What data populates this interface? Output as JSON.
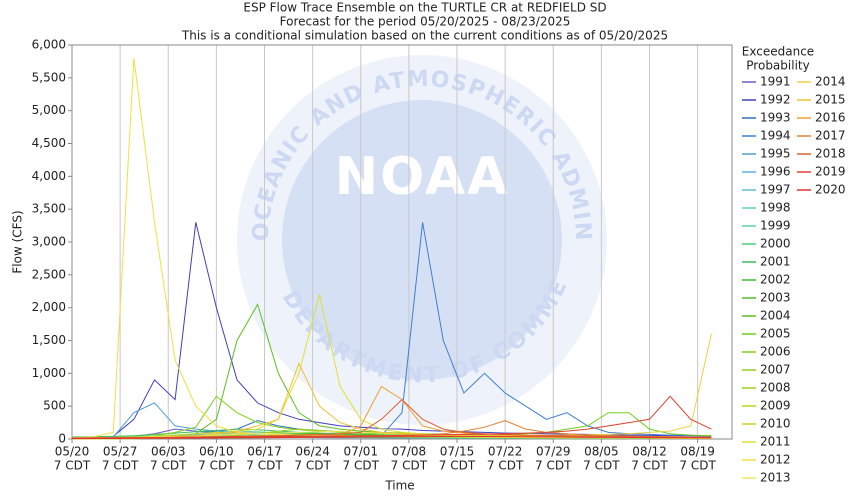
{
  "chart_data": {
    "type": "line",
    "title": [
      "ESP Flow Trace Ensemble on the TURTLE CR at REDFIELD SD",
      "Forecast for the period 05/20/2025 - 08/23/2025",
      "This is a conditional simulation based on the current conditions as of 05/20/2025"
    ],
    "xlabel": "Time",
    "ylabel": "Flow (CFS)",
    "legend_title": [
      "Exceedance",
      "Probability"
    ],
    "legend": "right",
    "watermark": {
      "logo": "NOAA",
      "ring_top": "NATIONAL OCEANIC AND ATMOSPHERIC ADMINISTRATION",
      "ring_bottom": "U.S. DEPARTMENT OF COMMERCE"
    },
    "grid": true,
    "x": [
      "05/20",
      "05/23",
      "05/26",
      "05/29",
      "06/01",
      "06/04",
      "06/07",
      "06/10",
      "06/13",
      "06/16",
      "06/19",
      "06/22",
      "06/25",
      "06/28",
      "07/01",
      "07/04",
      "07/07",
      "07/10",
      "07/13",
      "07/16",
      "07/19",
      "07/22",
      "07/25",
      "07/28",
      "07/31",
      "08/03",
      "08/06",
      "08/09",
      "08/12",
      "08/15",
      "08/18",
      "08/21"
    ],
    "xlim": [
      "05/20",
      "08/24"
    ],
    "xticks": [
      "05/20",
      "05/27",
      "06/03",
      "06/10",
      "06/17",
      "06/24",
      "07/01",
      "07/08",
      "07/15",
      "07/22",
      "07/29",
      "08/05",
      "08/12",
      "08/19"
    ],
    "xtick_sublabel": "7 CDT",
    "ylim": [
      0,
      6000
    ],
    "yticks": [
      0,
      500,
      {
        "value": 1000,
        "label": "1,000"
      },
      {
        "value": 1500,
        "label": "1,500"
      },
      {
        "value": 2000,
        "label": "2,000"
      },
      {
        "value": 2500,
        "label": "2,500"
      },
      {
        "value": 3000,
        "label": "3,000"
      },
      {
        "value": 3500,
        "label": "3,500"
      },
      {
        "value": 4000,
        "label": "4,000"
      },
      {
        "value": 4500,
        "label": "4,500"
      },
      {
        "value": 5000,
        "label": "5,000"
      },
      {
        "value": 5500,
        "label": "5,500"
      },
      {
        "value": 6000,
        "label": "6,000"
      }
    ],
    "series": [
      {
        "name": "1991",
        "color": "#6a5acd",
        "values": [
          10,
          15,
          20,
          40,
          80,
          150,
          120,
          100,
          90,
          80,
          70,
          60,
          55,
          50,
          45,
          40,
          40,
          35,
          35,
          30,
          30,
          28,
          25,
          25,
          22,
          20,
          20,
          18,
          18,
          15,
          15,
          15
        ]
      },
      {
        "name": "1992",
        "color": "#3f3fbf",
        "values": [
          20,
          25,
          40,
          300,
          900,
          600,
          3300,
          2000,
          900,
          550,
          400,
          300,
          250,
          200,
          180,
          160,
          150,
          130,
          120,
          110,
          100,
          90,
          85,
          80,
          75,
          70,
          65,
          60,
          55,
          50,
          50,
          45
        ]
      },
      {
        "name": "1993",
        "color": "#2f6fbf",
        "values": [
          10,
          10,
          15,
          20,
          30,
          50,
          80,
          120,
          150,
          280,
          200,
          150,
          130,
          110,
          100,
          90,
          80,
          70,
          60,
          55,
          50,
          45,
          40,
          35,
          30,
          30,
          28,
          25,
          25,
          22,
          20,
          20
        ]
      },
      {
        "name": "1994",
        "color": "#3f7fcf",
        "values": [
          10,
          10,
          10,
          12,
          15,
          20,
          20,
          25,
          25,
          30,
          30,
          35,
          40,
          45,
          45,
          50,
          400,
          3300,
          1500,
          700,
          1000,
          700,
          500,
          300,
          400,
          200,
          100,
          80,
          70,
          60,
          55,
          50
        ]
      },
      {
        "name": "1995",
        "color": "#4f9fcf",
        "values": [
          10,
          15,
          30,
          400,
          550,
          200,
          150,
          120,
          100,
          90,
          80,
          70,
          60,
          55,
          50,
          45,
          40,
          35,
          30,
          30,
          28,
          25,
          25,
          22,
          20,
          20,
          18,
          18,
          15,
          15,
          15,
          15
        ]
      },
      {
        "name": "1996",
        "color": "#5fb0df",
        "values": [
          5,
          5,
          8,
          10,
          15,
          20,
          25,
          30,
          35,
          30,
          28,
          25,
          22,
          20,
          18,
          16,
          15,
          14,
          13,
          12,
          11,
          10,
          10,
          10,
          9,
          9,
          8,
          8,
          8,
          7,
          7,
          7
        ]
      },
      {
        "name": "1997",
        "color": "#5fbfcf",
        "values": [
          15,
          18,
          20,
          25,
          40,
          60,
          70,
          60,
          50,
          45,
          40,
          38,
          35,
          32,
          30,
          28,
          26,
          25,
          24,
          22,
          20,
          20,
          18,
          18,
          16,
          15,
          15,
          14,
          14,
          13,
          12,
          12
        ]
      },
      {
        "name": "1998",
        "color": "#5fcfbf",
        "values": [
          8,
          10,
          12,
          20,
          30,
          45,
          60,
          80,
          70,
          60,
          50,
          45,
          40,
          35,
          30,
          28,
          25,
          22,
          20,
          18,
          16,
          15,
          14,
          13,
          12,
          11,
          10,
          10,
          9,
          9,
          8,
          8
        ]
      },
      {
        "name": "1999",
        "color": "#5fcf9f",
        "values": [
          20,
          25,
          30,
          40,
          50,
          60,
          80,
          100,
          120,
          110,
          90,
          80,
          70,
          60,
          55,
          50,
          45,
          40,
          38,
          35,
          32,
          30,
          28,
          26,
          25,
          24,
          22,
          20,
          20,
          18,
          18,
          16
        ]
      },
      {
        "name": "2000",
        "color": "#4fcf7f",
        "values": [
          5,
          5,
          6,
          8,
          10,
          12,
          15,
          18,
          20,
          22,
          25,
          28,
          30,
          28,
          25,
          22,
          20,
          18,
          16,
          15,
          14,
          13,
          12,
          11,
          10,
          10,
          9,
          9,
          8,
          8,
          7,
          7
        ]
      },
      {
        "name": "2001",
        "color": "#3fbf5f",
        "values": [
          30,
          35,
          40,
          50,
          70,
          90,
          110,
          130,
          150,
          140,
          120,
          100,
          90,
          80,
          70,
          60,
          55,
          50,
          45,
          40,
          38,
          35,
          32,
          30,
          28,
          26,
          25,
          24,
          22,
          20,
          20,
          18
        ]
      },
      {
        "name": "2002",
        "color": "#3fbf3f",
        "values": [
          10,
          10,
          12,
          15,
          18,
          20,
          25,
          30,
          35,
          40,
          45,
          50,
          55,
          60,
          70,
          80,
          90,
          80,
          70,
          60,
          55,
          50,
          45,
          40,
          38,
          35,
          32,
          30,
          28,
          26,
          25,
          24
        ]
      },
      {
        "name": "2003",
        "color": "#4fbf2f",
        "values": [
          12,
          14,
          16,
          20,
          25,
          30,
          35,
          40,
          60,
          80,
          100,
          90,
          80,
          70,
          60,
          55,
          50,
          45,
          40,
          38,
          35,
          32,
          30,
          28,
          26,
          24,
          22,
          20,
          20,
          18,
          18,
          16
        ]
      },
      {
        "name": "2004",
        "color": "#5fbf1f",
        "values": [
          5,
          5,
          10,
          20,
          30,
          50,
          80,
          300,
          1500,
          2050,
          1000,
          400,
          200,
          150,
          120,
          100,
          90,
          80,
          70,
          60,
          55,
          50,
          45,
          40,
          35,
          30,
          30,
          28,
          25,
          22,
          20,
          20
        ]
      },
      {
        "name": "2005",
        "color": "#6fcf1f",
        "values": [
          10,
          12,
          14,
          16,
          18,
          20,
          22,
          25,
          28,
          30,
          32,
          35,
          38,
          40,
          42,
          45,
          48,
          50,
          55,
          60,
          65,
          70,
          80,
          100,
          150,
          200,
          400,
          400,
          150,
          80,
          60,
          50
        ]
      },
      {
        "name": "2006",
        "color": "#7fcf1f",
        "values": [
          10,
          12,
          15,
          25,
          50,
          100,
          180,
          650,
          400,
          250,
          180,
          140,
          120,
          100,
          90,
          80,
          70,
          60,
          55,
          50,
          45,
          40,
          38,
          35,
          32,
          30,
          28,
          26,
          24,
          22,
          20,
          20
        ]
      },
      {
        "name": "2007",
        "color": "#8fcf1f",
        "values": [
          6,
          8,
          10,
          12,
          15,
          20,
          25,
          30,
          40,
          50,
          60,
          70,
          60,
          50,
          45,
          40,
          36,
          32,
          30,
          28,
          25,
          22,
          20,
          18,
          16,
          15,
          14,
          13,
          12,
          11,
          10,
          10
        ]
      },
      {
        "name": "2008",
        "color": "#a0d020",
        "values": [
          20,
          22,
          25,
          28,
          30,
          35,
          40,
          50,
          60,
          80,
          120,
          150,
          130,
          110,
          100,
          90,
          80,
          70,
          65,
          60,
          55,
          50,
          45,
          42,
          40,
          38,
          35,
          32,
          30,
          28,
          26,
          25
        ]
      },
      {
        "name": "2009",
        "color": "#c0d020",
        "values": [
          8,
          8,
          9,
          10,
          12,
          14,
          16,
          18,
          20,
          22,
          25,
          30,
          35,
          40,
          45,
          50,
          55,
          60,
          55,
          50,
          45,
          40,
          35,
          30,
          28,
          25,
          22,
          20,
          18,
          16,
          15,
          14
        ]
      },
      {
        "name": "2010",
        "color": "#d0d020",
        "values": [
          15,
          18,
          22,
          30,
          45,
          60,
          80,
          100,
          90,
          80,
          70,
          60,
          55,
          50,
          48,
          45,
          42,
          40,
          38,
          36,
          34,
          32,
          30,
          28,
          26,
          25,
          24,
          22,
          21,
          20,
          19,
          18
        ]
      },
      {
        "name": "2011",
        "color": "#e0e030",
        "values": [
          5,
          5,
          5,
          5,
          10,
          20,
          40,
          80,
          120,
          150,
          300,
          1000,
          2200,
          800,
          300,
          150,
          100,
          80,
          60,
          50,
          40,
          35,
          30,
          25,
          20,
          20,
          18,
          15,
          15,
          12,
          10,
          10
        ]
      },
      {
        "name": "2012",
        "color": "#f0e040",
        "values": [
          20,
          30,
          100,
          5800,
          3300,
          1200,
          500,
          200,
          100,
          80,
          70,
          60,
          55,
          50,
          45,
          40,
          38,
          35,
          32,
          30,
          28,
          25,
          22,
          20,
          20,
          18,
          18,
          15,
          15,
          12,
          12,
          10
        ]
      },
      {
        "name": "2013",
        "color": "#f0e860",
        "values": [
          10,
          12,
          15,
          20,
          30,
          40,
          50,
          60,
          70,
          80,
          90,
          100,
          110,
          120,
          100,
          90,
          80,
          70,
          60,
          55,
          50,
          45,
          40,
          36,
          32,
          30,
          28,
          26,
          24,
          22,
          20,
          20
        ]
      },
      {
        "name": "2014",
        "color": "#f0d040",
        "values": [
          5,
          5,
          6,
          8,
          10,
          12,
          15,
          18,
          20,
          22,
          25,
          28,
          30,
          32,
          35,
          38,
          40,
          42,
          45,
          48,
          50,
          52,
          55,
          58,
          60,
          65,
          70,
          80,
          100,
          120,
          200,
          1600
        ]
      },
      {
        "name": "2015",
        "color": "#f0c030",
        "values": [
          8,
          10,
          12,
          15,
          20,
          30,
          50,
          80,
          120,
          200,
          300,
          1150,
          500,
          250,
          150,
          100,
          80,
          70,
          60,
          50,
          45,
          40,
          35,
          30,
          28,
          25,
          22,
          20,
          18,
          16,
          15,
          14
        ]
      },
      {
        "name": "2016",
        "color": "#f0a030",
        "values": [
          6,
          8,
          10,
          12,
          14,
          16,
          18,
          20,
          25,
          30,
          35,
          40,
          50,
          60,
          200,
          800,
          600,
          200,
          120,
          90,
          70,
          60,
          50,
          45,
          40,
          35,
          30,
          28,
          25,
          22,
          20,
          18
        ]
      },
      {
        "name": "2017",
        "color": "#e08030",
        "values": [
          10,
          10,
          12,
          14,
          16,
          18,
          20,
          22,
          25,
          28,
          30,
          32,
          35,
          38,
          40,
          45,
          50,
          60,
          80,
          120,
          180,
          280,
          150,
          100,
          80,
          60,
          50,
          45,
          40,
          35,
          30,
          28
        ]
      },
      {
        "name": "2018",
        "color": "#e06030",
        "values": [
          12,
          14,
          16,
          18,
          20,
          25,
          30,
          35,
          40,
          45,
          50,
          60,
          70,
          80,
          100,
          300,
          600,
          300,
          150,
          100,
          80,
          70,
          60,
          55,
          50,
          45,
          40,
          35,
          32,
          30,
          28,
          25
        ]
      },
      {
        "name": "2019",
        "color": "#e04030",
        "values": [
          15,
          16,
          18,
          20,
          22,
          25,
          28,
          30,
          32,
          35,
          38,
          40,
          42,
          45,
          48,
          50,
          55,
          60,
          65,
          70,
          75,
          80,
          90,
          100,
          120,
          150,
          200,
          250,
          300,
          650,
          300,
          150
        ]
      },
      {
        "name": "2020",
        "color": "#e03030",
        "values": [
          6,
          7,
          8,
          9,
          10,
          12,
          14,
          16,
          18,
          20,
          22,
          24,
          26,
          28,
          30,
          32,
          34,
          36,
          38,
          40,
          38,
          36,
          34,
          32,
          30,
          28,
          26,
          24,
          22,
          20,
          18,
          16
        ]
      }
    ]
  }
}
